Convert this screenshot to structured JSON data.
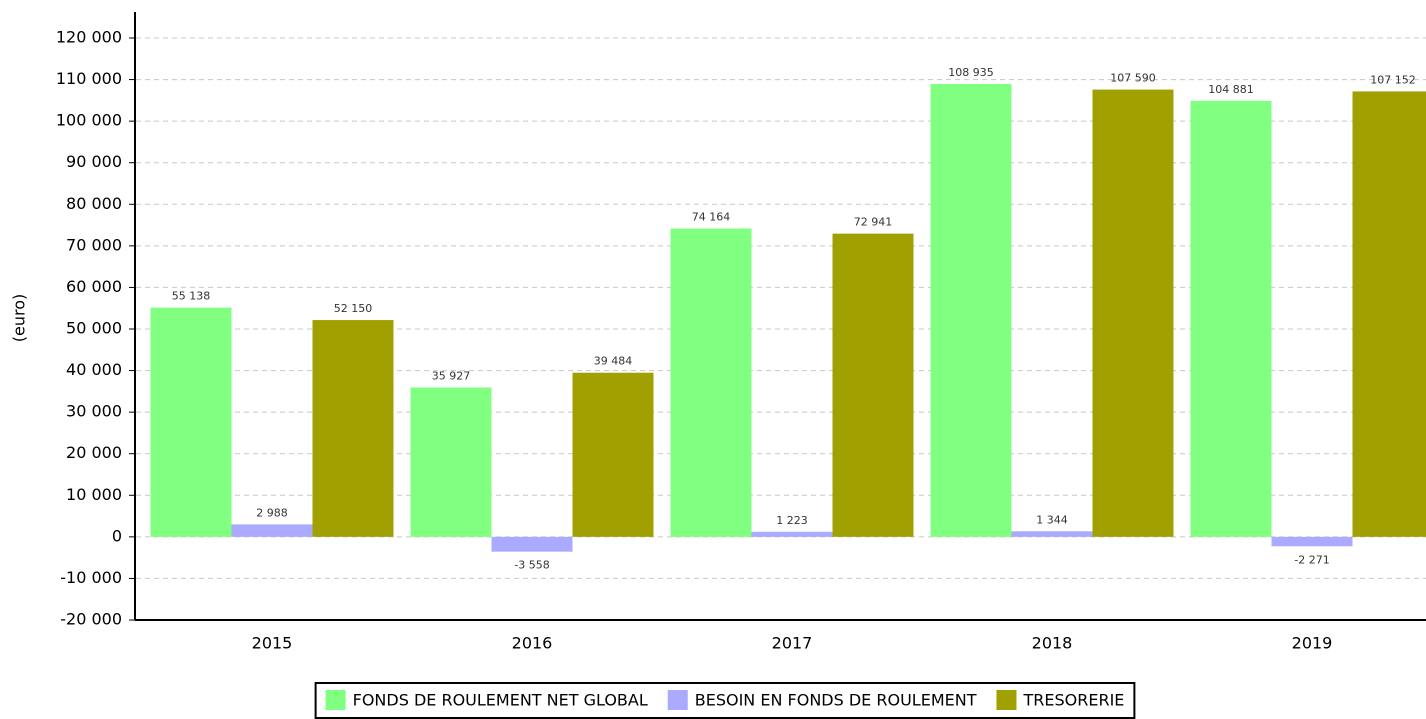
{
  "chart_data": {
    "type": "bar",
    "y_label": "(euro)",
    "categories": [
      "2015",
      "2016",
      "2017",
      "2018",
      "2019"
    ],
    "series": [
      {
        "name": "FONDS DE ROULEMENT NET GLOBAL",
        "color": "#80ff80",
        "values": [
          55138,
          35927,
          74164,
          108935,
          104881
        ],
        "value_labels": [
          "55 138",
          "35 927",
          "74 164",
          "108 935",
          "104 881"
        ]
      },
      {
        "name": "BESOIN EN FONDS DE ROULEMENT",
        "color": "#aaaaff",
        "values": [
          2988,
          -3558,
          1223,
          1344,
          -2271
        ],
        "value_labels": [
          "2 988",
          "-3 558",
          "1 223",
          "1 344",
          "-2 271"
        ]
      },
      {
        "name": "TRESORERIE",
        "color": "#a0a000",
        "values": [
          52150,
          39484,
          72941,
          107590,
          107152
        ],
        "value_labels": [
          "52 150",
          "39 484",
          "72 941",
          "107 590",
          "107 152"
        ]
      }
    ],
    "ylim": [
      -20000,
      120000
    ],
    "yticks": [
      {
        "value": -20000,
        "label": "-20 000"
      },
      {
        "value": -10000,
        "label": "-10 000"
      },
      0,
      {
        "value": 10000,
        "label": "10 000"
      },
      {
        "value": 20000,
        "label": "20 000"
      },
      {
        "value": 30000,
        "label": "30 000"
      },
      {
        "value": 40000,
        "label": "40 000"
      },
      {
        "value": 50000,
        "label": "50 000"
      },
      {
        "value": 60000,
        "label": "60 000"
      },
      {
        "value": 70000,
        "label": "70 000"
      },
      {
        "value": 80000,
        "label": "80 000"
      },
      {
        "value": 90000,
        "label": "90 000"
      },
      {
        "value": 100000,
        "label": "100 000"
      },
      {
        "value": 110000,
        "label": "110 000"
      },
      {
        "value": 120000,
        "label": "120 000"
      }
    ],
    "grid": true
  }
}
